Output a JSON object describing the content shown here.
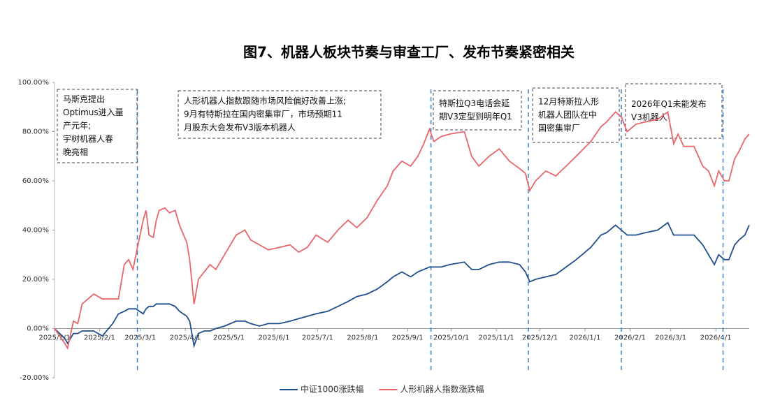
{
  "chart_data": {
    "type": "line",
    "title": "图7、机器人板块节奏与审查工厂、发布节奏紧密相关",
    "x": [
      "2025/1/1",
      "2025/1/8",
      "2025/1/10",
      "2025/1/14",
      "2025/1/17",
      "2025/1/20",
      "2025/1/24",
      "2025/1/28",
      "2025/2/3",
      "2025/2/10",
      "2025/2/14",
      "2025/2/18",
      "2025/2/21",
      "2025/2/24",
      "2025/2/26",
      "2025/3/3",
      "2025/3/5",
      "2025/3/7",
      "2025/3/10",
      "2025/3/12",
      "2025/3/14",
      "2025/3/18",
      "2025/3/21",
      "2025/3/25",
      "2025/3/28",
      "2025/4/2",
      "2025/4/4",
      "2025/4/7",
      "2025/4/10",
      "2025/4/14",
      "2025/4/18",
      "2025/4/22",
      "2025/4/28",
      "2025/5/6",
      "2025/5/12",
      "2025/5/16",
      "2025/5/22",
      "2025/5/28",
      "2025/6/5",
      "2025/6/12",
      "2025/6/18",
      "2025/6/24",
      "2025/6/30",
      "2025/7/8",
      "2025/7/15",
      "2025/7/22",
      "2025/7/28",
      "2025/8/4",
      "2025/8/11",
      "2025/8/18",
      "2025/8/22",
      "2025/8/28",
      "2025/9/3",
      "2025/9/8",
      "2025/9/12",
      "2025/9/16",
      "2025/9/19",
      "2025/9/24",
      "2025/9/30",
      "2025/10/10",
      "2025/10/15",
      "2025/10/20",
      "2025/10/27",
      "2025/11/3",
      "2025/11/10",
      "2025/11/17",
      "2025/11/21",
      "2025/11/24",
      "2025/11/28",
      "2025/12/5",
      "2025/12/12",
      "2025/12/19",
      "2025/12/26",
      "2026/1/5",
      "2026/1/12",
      "2026/1/16",
      "2026/1/22",
      "2026/1/26",
      "2026/1/30",
      "2026/2/5",
      "2026/2/12",
      "2026/2/20",
      "2026/2/27",
      "2026/3/3",
      "2026/3/6",
      "2026/3/10",
      "2026/3/17",
      "2026/3/23",
      "2026/3/27",
      "2026/3/31",
      "2026/4/3",
      "2026/4/7",
      "2026/4/10",
      "2026/4/14",
      "2026/4/17",
      "2026/4/21",
      "2026/4/24"
    ],
    "series": [
      {
        "name": "中证1000涨跌幅",
        "color": "#1f4e8c",
        "values": [
          0,
          -4,
          -6,
          -2,
          -2,
          -1,
          -1,
          -1,
          -3,
          2,
          6,
          7,
          8,
          8,
          8,
          6,
          8,
          9,
          9,
          10,
          10,
          10,
          10,
          9,
          7,
          5,
          3,
          -7,
          -2,
          -1,
          -1,
          0,
          1,
          3,
          3,
          2,
          1,
          2,
          2,
          3,
          4,
          5,
          6,
          7,
          9,
          11,
          13,
          14,
          16,
          19,
          21,
          23,
          21,
          23,
          24,
          25,
          25,
          25,
          26,
          27,
          24,
          24,
          26,
          27,
          27,
          26,
          23,
          19,
          20,
          21,
          22,
          25,
          28,
          33,
          38,
          39,
          42,
          40,
          38,
          38,
          39,
          40,
          43,
          38,
          38,
          38,
          38,
          34,
          30,
          26,
          30,
          28,
          28,
          34,
          36,
          38,
          42
        ]
      },
      {
        "name": "人形机器人指数涨跌幅",
        "color": "#e8666b",
        "values": [
          0,
          -6,
          -8,
          3,
          2,
          10,
          12,
          14,
          12,
          12,
          12,
          26,
          28,
          24,
          30,
          44,
          48,
          38,
          37,
          44,
          48,
          49,
          47,
          48,
          42,
          35,
          28,
          10,
          20,
          23,
          26,
          24,
          30,
          38,
          40,
          36,
          34,
          32,
          33,
          34,
          31,
          33,
          38,
          35,
          40,
          44,
          41,
          45,
          52,
          58,
          64,
          68,
          66,
          70,
          75,
          81,
          76,
          78,
          79,
          80,
          70,
          66,
          70,
          73,
          68,
          65,
          63,
          56,
          60,
          64,
          62,
          66,
          70,
          76,
          82,
          84,
          88,
          86,
          80,
          83,
          84,
          85,
          88,
          75,
          79,
          74,
          74,
          66,
          64,
          58,
          64,
          60,
          60,
          69,
          72,
          77,
          79
        ]
      }
    ],
    "xlim": [
      "2025/1/1",
      "2026/4/24"
    ],
    "xticks": [
      "2025/1/1",
      "2025/2/1",
      "2025/3/1",
      "2025/4/1",
      "2025/5/1",
      "2025/6/1",
      "2025/7/1",
      "2025/8/1",
      "2025/9/1",
      "2025/10/1",
      "2025/11/1",
      "2025/12/1",
      "2026/1/1",
      "2026/2/1",
      "2026/3/1",
      "2026/4/1"
    ],
    "ylim": [
      -20,
      100
    ],
    "yticks": [
      {
        "value": -20,
        "label": "-20.00%"
      },
      {
        "value": 0,
        "label": "0.00%"
      },
      {
        "value": 20,
        "label": "20.00%"
      },
      {
        "value": 40,
        "label": "40.00%"
      },
      {
        "value": 60,
        "label": "60.00%"
      },
      {
        "value": 80,
        "label": "80.00%"
      },
      {
        "value": 100,
        "label": "100.00%"
      }
    ],
    "event_dates": [
      "2025/2/27",
      "2025/9/17",
      "2025/11/23",
      "2026/1/26",
      "2026/4/6"
    ],
    "annotations": [
      {
        "lines": [
          "马斯克提出",
          "Optimus进入量",
          "产元年;",
          "宇树机器人春",
          "晚亮相"
        ]
      },
      {
        "lines": [
          "人形机器人指数跟随市场风险偏好改善上涨;",
          "9月有特斯拉在国内密集审厂，市场预期11",
          "月股东大会发布V3版本机器人"
        ]
      },
      {
        "lines": [
          "特斯拉Q3电话会延",
          "期V3定型到明年Q1"
        ]
      },
      {
        "lines": [
          "12月特斯拉人形",
          "机器人团队在中",
          "国密集审厂"
        ]
      },
      {
        "lines": [
          "2026年Q1未能发布",
          "V3机器人"
        ]
      }
    ],
    "legend": "bottom"
  }
}
